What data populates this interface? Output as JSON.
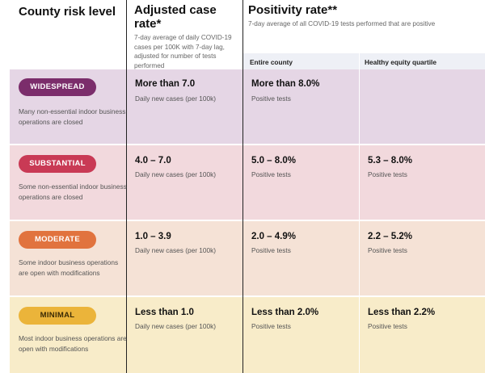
{
  "header": {
    "col1_title": "County risk level",
    "col2_title": "Adjusted case rate*",
    "col2_sub": "7-day average of daily COVID-19 cases per 100K with 7-day lag, adjusted for number of tests performed",
    "col3_title": "Positivity rate**",
    "col3_sub": "7-day average of all COVID-19 tests performed that are positive",
    "sub_entire": "Entire county",
    "sub_equity": "Healthy equity quartile"
  },
  "tiers": [
    {
      "label": "WIDESPREAD",
      "desc": "Many non-essential indoor business operations are closed",
      "case_value": "More than 7.0",
      "case_caption": "Daily new cases (per 100k)",
      "county_value": "More than 8.0%",
      "county_caption": "Positive tests",
      "equity_value": "",
      "equity_caption": "",
      "band_color": "#e5d6e5",
      "pill_color": "#7b2d6b"
    },
    {
      "label": "SUBSTANTIAL",
      "desc": "Some non-essential indoor business operations are closed",
      "case_value": "4.0 – 7.0",
      "case_caption": "Daily new cases (per 100k)",
      "county_value": "5.0 – 8.0%",
      "county_caption": "Positive tests",
      "equity_value": "5.3 – 8.0%",
      "equity_caption": "Positive tests",
      "band_color": "#f2d9dd",
      "pill_color": "#c93a55"
    },
    {
      "label": "MODERATE",
      "desc": "Some indoor business operations are open with modifications",
      "case_value": "1.0 – 3.9",
      "case_caption": "Daily new cases (per 100k)",
      "county_value": "2.0 – 4.9%",
      "county_caption": "Positive tests",
      "equity_value": "2.2 – 5.2%",
      "equity_caption": "Positive tests",
      "band_color": "#f5e2d6",
      "pill_color": "#e1733e"
    },
    {
      "label": "MINIMAL",
      "desc": "Most indoor business operations are open with modifications",
      "case_value": "Less than 1.0",
      "case_caption": "Daily new cases (per 100k)",
      "county_value": "Less than 2.0%",
      "county_caption": "Positive tests",
      "equity_value": "Less than 2.2%",
      "equity_caption": "Positive tests",
      "band_color": "#f8ecc9",
      "pill_color": "#ebb43a",
      "pill_text_color": "#3a2a05"
    }
  ]
}
